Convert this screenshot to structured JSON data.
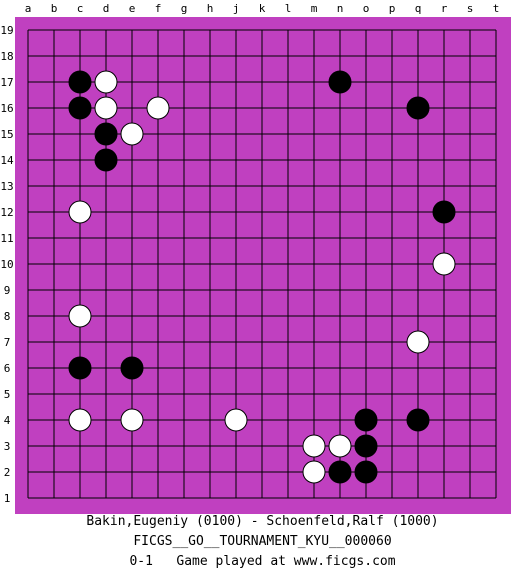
{
  "board": {
    "size": 19,
    "colors": {
      "background": "#c040c0",
      "line": "#000000",
      "black_stone": "#000000",
      "white_stone": "#ffffff"
    },
    "column_labels": [
      "a",
      "b",
      "c",
      "d",
      "e",
      "f",
      "g",
      "h",
      "j",
      "k",
      "l",
      "m",
      "n",
      "o",
      "p",
      "q",
      "r",
      "s",
      "t"
    ],
    "row_labels": [
      "19",
      "18",
      "17",
      "16",
      "15",
      "14",
      "13",
      "12",
      "11",
      "10",
      "9",
      "8",
      "7",
      "6",
      "5",
      "4",
      "3",
      "2",
      "1"
    ],
    "stones": [
      {
        "color": "black",
        "point": "c17"
      },
      {
        "color": "white",
        "point": "d17"
      },
      {
        "color": "black",
        "point": "n17"
      },
      {
        "color": "black",
        "point": "c16"
      },
      {
        "color": "white",
        "point": "d16"
      },
      {
        "color": "white",
        "point": "f16"
      },
      {
        "color": "black",
        "point": "q16"
      },
      {
        "color": "black",
        "point": "d15"
      },
      {
        "color": "white",
        "point": "e15"
      },
      {
        "color": "black",
        "point": "d14"
      },
      {
        "color": "white",
        "point": "c12"
      },
      {
        "color": "black",
        "point": "r12"
      },
      {
        "color": "white",
        "point": "r10"
      },
      {
        "color": "white",
        "point": "c8"
      },
      {
        "color": "white",
        "point": "q7"
      },
      {
        "color": "black",
        "point": "c6"
      },
      {
        "color": "black",
        "point": "e6"
      },
      {
        "color": "white",
        "point": "c4"
      },
      {
        "color": "white",
        "point": "e4"
      },
      {
        "color": "white",
        "point": "j4"
      },
      {
        "color": "black",
        "point": "o4"
      },
      {
        "color": "black",
        "point": "q4"
      },
      {
        "color": "white",
        "point": "m3"
      },
      {
        "color": "white",
        "point": "n3"
      },
      {
        "color": "black",
        "point": "o3"
      },
      {
        "color": "white",
        "point": "m2"
      },
      {
        "color": "black",
        "point": "n2"
      },
      {
        "color": "black",
        "point": "o2"
      }
    ]
  },
  "footer": {
    "players": "Bakin,Eugeniy (0100) - Schoenfeld,Ralf (1000)",
    "tournament": "FICGS__GO__TOURNAMENT_KYU__000060",
    "result": "0-1   Game played at www.ficgs.com"
  }
}
